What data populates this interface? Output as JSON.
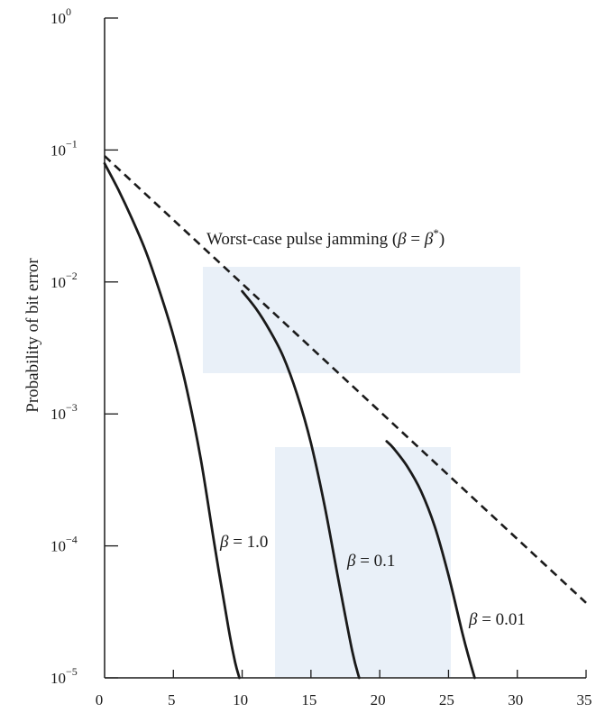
{
  "chart_data": {
    "type": "line",
    "title": "",
    "xlabel": "",
    "ylabel": "Probability of bit error",
    "xlim": [
      0,
      35
    ],
    "ylim": [
      1e-05,
      1
    ],
    "yscale": "log",
    "grid": false,
    "x_ticks": [
      "0",
      "5",
      "10",
      "15",
      "20",
      "25",
      "30",
      "35"
    ],
    "y_ticks": [
      {
        "base": "10",
        "exp": "0"
      },
      {
        "base": "10",
        "exp": "−1"
      },
      {
        "base": "10",
        "exp": "−2"
      },
      {
        "base": "10",
        "exp": "−3"
      },
      {
        "base": "10",
        "exp": "−4"
      },
      {
        "base": "10",
        "exp": "−5"
      }
    ],
    "series": [
      {
        "label_name": "β = 1.0",
        "label_var": "β",
        "label_rest": " = 1.0",
        "style": "solid",
        "x": [
          0,
          1,
          2,
          3,
          4,
          5,
          6,
          7,
          8,
          9,
          9.5,
          9.8
        ],
        "y": [
          0.079,
          0.05,
          0.03,
          0.017,
          0.0085,
          0.0039,
          0.0015,
          0.00045,
          0.0001,
          2.4e-05,
          1.3e-05,
          1e-05
        ]
      },
      {
        "label_name": "β = 0.1",
        "label_var": "β",
        "label_rest": " = 0.1",
        "style": "solid",
        "x": [
          10,
          11,
          12,
          13,
          14,
          15,
          16,
          17,
          18,
          18.5
        ],
        "y": [
          0.0085,
          0.0063,
          0.0043,
          0.0027,
          0.0014,
          0.0006,
          0.0002,
          5.5e-05,
          1.6e-05,
          1e-05
        ]
      },
      {
        "label_name": "β = 0.01",
        "label_var": "β",
        "label_rest": " = 0.01",
        "style": "solid",
        "x": [
          20.5,
          21,
          22,
          23,
          24,
          25,
          26,
          26.5,
          26.9
        ],
        "y": [
          0.00062,
          0.00055,
          0.0004,
          0.00026,
          0.00014,
          6e-05,
          2.2e-05,
          1.4e-05,
          1e-05
        ]
      },
      {
        "label_name": "Worst-case pulse jamming (β = β*)",
        "label_prefix": "Worst-case pulse jamming (",
        "label_var": "β",
        "label_eq": " = ",
        "label_var2": "β",
        "label_sup": "*",
        "label_suffix": ")",
        "style": "dashed",
        "x": [
          0,
          35
        ],
        "y": [
          0.09,
          3.7e-05
        ]
      }
    ]
  }
}
